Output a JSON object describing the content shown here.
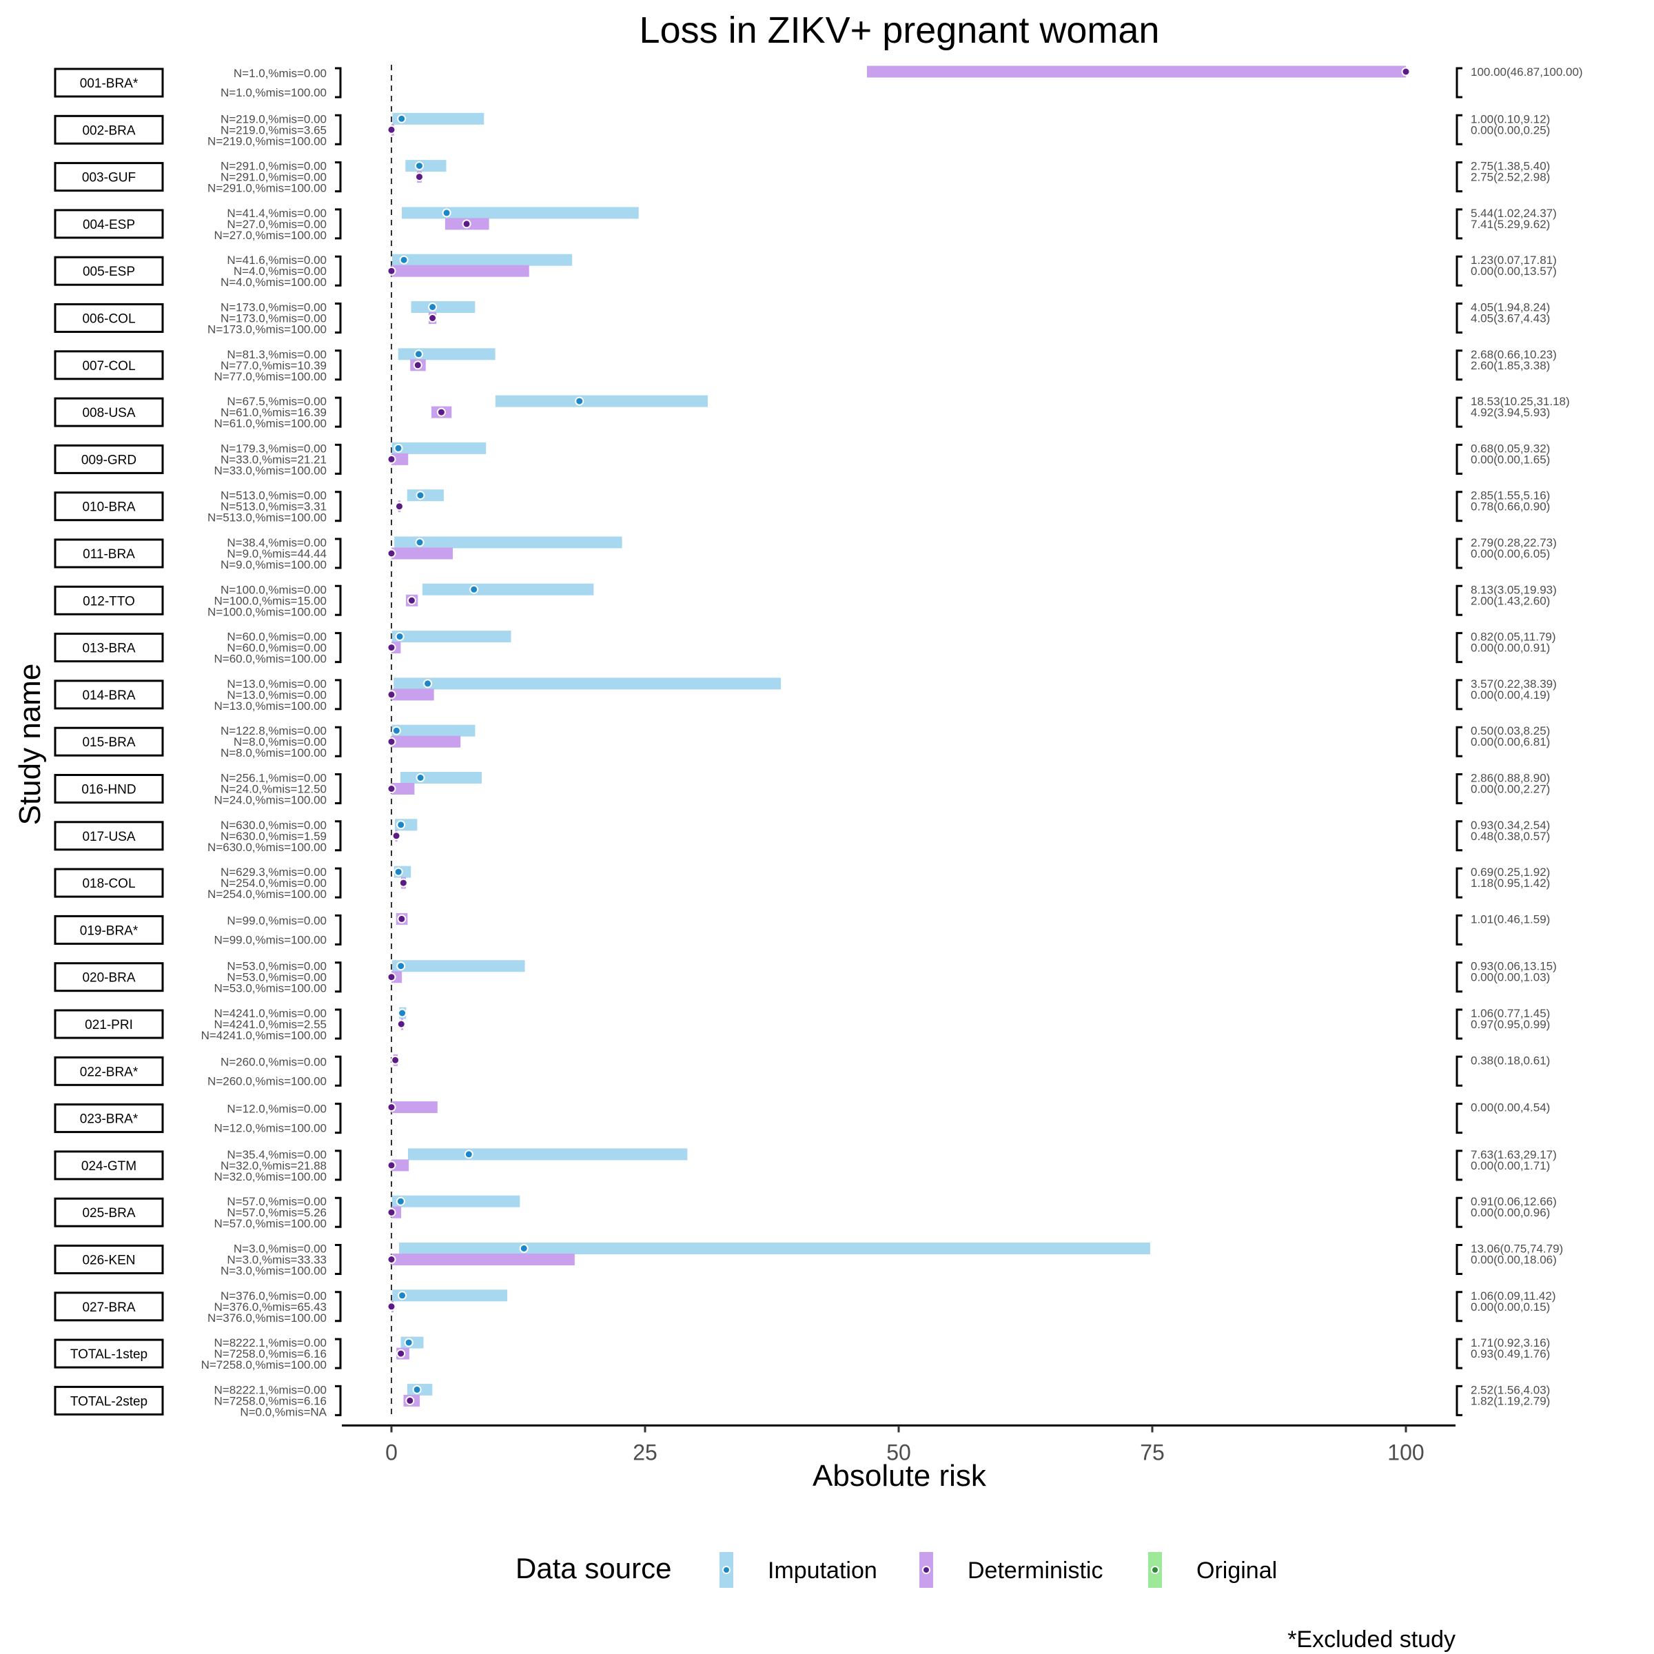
{
  "chart_data": {
    "type": "forest",
    "title": "Loss in ZIKV+ pregnant woman",
    "xlabel": "Absolute risk",
    "ylabel": "Study name",
    "xlim": [
      -5,
      105
    ],
    "x_ticks": [
      0,
      25,
      50,
      75,
      100
    ],
    "grid": false,
    "reference_line_x": 0,
    "legend": {
      "title": "Data source",
      "position": "bottom",
      "entries": [
        {
          "label": "Imputation",
          "bar_color": "#a8d8f0",
          "point_color": "#1b87c8"
        },
        {
          "label": "Deterministic",
          "bar_color": "#c9a0ee",
          "point_color": "#5b1a86"
        },
        {
          "label": "Original",
          "bar_color": "#9ee89a",
          "point_color": "#2e8b3a"
        }
      ]
    },
    "footnote": "*Excluded study",
    "studies": [
      {
        "name": "001-BRA*",
        "n_labels": [
          "N=1.0,%mis=0.00",
          "N=1.0,%mis=100.00"
        ],
        "rows": [
          {
            "source": "Deterministic",
            "est": 100.0,
            "lo": 46.87,
            "hi": 100.0,
            "label": "100.00(46.87,100.00)"
          }
        ]
      },
      {
        "name": "002-BRA",
        "n_labels": [
          "N=219.0,%mis=0.00",
          "N=219.0,%mis=3.65",
          "N=219.0,%mis=100.00"
        ],
        "rows": [
          {
            "source": "Imputation",
            "est": 1.0,
            "lo": 0.1,
            "hi": 9.12,
            "label": "1.00(0.10,9.12)"
          },
          {
            "source": "Deterministic",
            "est": 0.0,
            "lo": 0.0,
            "hi": 0.25,
            "label": "0.00(0.00,0.25)"
          }
        ]
      },
      {
        "name": "003-GUF",
        "n_labels": [
          "N=291.0,%mis=0.00",
          "N=291.0,%mis=0.00",
          "N=291.0,%mis=100.00"
        ],
        "rows": [
          {
            "source": "Imputation",
            "est": 2.75,
            "lo": 1.38,
            "hi": 5.4,
            "label": "2.75(1.38,5.40)"
          },
          {
            "source": "Deterministic",
            "est": 2.75,
            "lo": 2.52,
            "hi": 2.98,
            "label": "2.75(2.52,2.98)"
          }
        ]
      },
      {
        "name": "004-ESP",
        "n_labels": [
          "N=41.4,%mis=0.00",
          "N=27.0,%mis=0.00",
          "N=27.0,%mis=100.00"
        ],
        "rows": [
          {
            "source": "Imputation",
            "est": 5.44,
            "lo": 1.02,
            "hi": 24.37,
            "label": "5.44(1.02,24.37)"
          },
          {
            "source": "Deterministic",
            "est": 7.41,
            "lo": 5.29,
            "hi": 9.62,
            "label": "7.41(5.29,9.62)"
          }
        ]
      },
      {
        "name": "005-ESP",
        "n_labels": [
          "N=41.6,%mis=0.00",
          "N=4.0,%mis=0.00",
          "N=4.0,%mis=100.00"
        ],
        "rows": [
          {
            "source": "Imputation",
            "est": 1.23,
            "lo": 0.07,
            "hi": 17.81,
            "label": "1.23(0.07,17.81)"
          },
          {
            "source": "Deterministic",
            "est": 0.0,
            "lo": 0.0,
            "hi": 13.57,
            "label": "0.00(0.00,13.57)"
          }
        ]
      },
      {
        "name": "006-COL",
        "n_labels": [
          "N=173.0,%mis=0.00",
          "N=173.0,%mis=0.00",
          "N=173.0,%mis=100.00"
        ],
        "rows": [
          {
            "source": "Imputation",
            "est": 4.05,
            "lo": 1.94,
            "hi": 8.24,
            "label": "4.05(1.94,8.24)"
          },
          {
            "source": "Deterministic",
            "est": 4.05,
            "lo": 3.67,
            "hi": 4.43,
            "label": "4.05(3.67,4.43)"
          }
        ]
      },
      {
        "name": "007-COL",
        "n_labels": [
          "N=81.3,%mis=0.00",
          "N=77.0,%mis=10.39",
          "N=77.0,%mis=100.00"
        ],
        "rows": [
          {
            "source": "Imputation",
            "est": 2.68,
            "lo": 0.66,
            "hi": 10.23,
            "label": "2.68(0.66,10.23)"
          },
          {
            "source": "Deterministic",
            "est": 2.6,
            "lo": 1.85,
            "hi": 3.38,
            "label": "2.60(1.85,3.38)"
          }
        ]
      },
      {
        "name": "008-USA",
        "n_labels": [
          "N=67.5,%mis=0.00",
          "N=61.0,%mis=16.39",
          "N=61.0,%mis=100.00"
        ],
        "rows": [
          {
            "source": "Imputation",
            "est": 18.53,
            "lo": 10.25,
            "hi": 31.18,
            "label": "18.53(10.25,31.18)"
          },
          {
            "source": "Deterministic",
            "est": 4.92,
            "lo": 3.94,
            "hi": 5.93,
            "label": "4.92(3.94,5.93)"
          }
        ]
      },
      {
        "name": "009-GRD",
        "n_labels": [
          "N=179.3,%mis=0.00",
          "N=33.0,%mis=21.21",
          "N=33.0,%mis=100.00"
        ],
        "rows": [
          {
            "source": "Imputation",
            "est": 0.68,
            "lo": 0.05,
            "hi": 9.32,
            "label": "0.68(0.05,9.32)"
          },
          {
            "source": "Deterministic",
            "est": 0.0,
            "lo": 0.0,
            "hi": 1.65,
            "label": "0.00(0.00,1.65)"
          }
        ]
      },
      {
        "name": "010-BRA",
        "n_labels": [
          "N=513.0,%mis=0.00",
          "N=513.0,%mis=3.31",
          "N=513.0,%mis=100.00"
        ],
        "rows": [
          {
            "source": "Imputation",
            "est": 2.85,
            "lo": 1.55,
            "hi": 5.16,
            "label": "2.85(1.55,5.16)"
          },
          {
            "source": "Deterministic",
            "est": 0.78,
            "lo": 0.66,
            "hi": 0.9,
            "label": "0.78(0.66,0.90)"
          }
        ]
      },
      {
        "name": "011-BRA",
        "n_labels": [
          "N=38.4,%mis=0.00",
          "N=9.0,%mis=44.44",
          "N=9.0,%mis=100.00"
        ],
        "rows": [
          {
            "source": "Imputation",
            "est": 2.79,
            "lo": 0.28,
            "hi": 22.73,
            "label": "2.79(0.28,22.73)"
          },
          {
            "source": "Deterministic",
            "est": 0.0,
            "lo": 0.0,
            "hi": 6.05,
            "label": "0.00(0.00,6.05)"
          }
        ]
      },
      {
        "name": "012-TTO",
        "n_labels": [
          "N=100.0,%mis=0.00",
          "N=100.0,%mis=15.00",
          "N=100.0,%mis=100.00"
        ],
        "rows": [
          {
            "source": "Imputation",
            "est": 8.13,
            "lo": 3.05,
            "hi": 19.93,
            "label": "8.13(3.05,19.93)"
          },
          {
            "source": "Deterministic",
            "est": 2.0,
            "lo": 1.43,
            "hi": 2.6,
            "label": "2.00(1.43,2.60)"
          }
        ]
      },
      {
        "name": "013-BRA",
        "n_labels": [
          "N=60.0,%mis=0.00",
          "N=60.0,%mis=0.00",
          "N=60.0,%mis=100.00"
        ],
        "rows": [
          {
            "source": "Imputation",
            "est": 0.82,
            "lo": 0.05,
            "hi": 11.79,
            "label": "0.82(0.05,11.79)"
          },
          {
            "source": "Deterministic",
            "est": 0.0,
            "lo": 0.0,
            "hi": 0.91,
            "label": "0.00(0.00,0.91)"
          }
        ]
      },
      {
        "name": "014-BRA",
        "n_labels": [
          "N=13.0,%mis=0.00",
          "N=13.0,%mis=0.00",
          "N=13.0,%mis=100.00"
        ],
        "rows": [
          {
            "source": "Imputation",
            "est": 3.57,
            "lo": 0.22,
            "hi": 38.39,
            "label": "3.57(0.22,38.39)"
          },
          {
            "source": "Deterministic",
            "est": 0.0,
            "lo": 0.0,
            "hi": 4.19,
            "label": "0.00(0.00,4.19)"
          }
        ]
      },
      {
        "name": "015-BRA",
        "n_labels": [
          "N=122.8,%mis=0.00",
          "N=8.0,%mis=0.00",
          "N=8.0,%mis=100.00"
        ],
        "rows": [
          {
            "source": "Imputation",
            "est": 0.5,
            "lo": 0.03,
            "hi": 8.25,
            "label": "0.50(0.03,8.25)"
          },
          {
            "source": "Deterministic",
            "est": 0.0,
            "lo": 0.0,
            "hi": 6.81,
            "label": "0.00(0.00,6.81)"
          }
        ]
      },
      {
        "name": "016-HND",
        "n_labels": [
          "N=256.1,%mis=0.00",
          "N=24.0,%mis=12.50",
          "N=24.0,%mis=100.00"
        ],
        "rows": [
          {
            "source": "Imputation",
            "est": 2.86,
            "lo": 0.88,
            "hi": 8.9,
            "label": "2.86(0.88,8.90)"
          },
          {
            "source": "Deterministic",
            "est": 0.0,
            "lo": 0.0,
            "hi": 2.27,
            "label": "0.00(0.00,2.27)"
          }
        ]
      },
      {
        "name": "017-USA",
        "n_labels": [
          "N=630.0,%mis=0.00",
          "N=630.0,%mis=1.59",
          "N=630.0,%mis=100.00"
        ],
        "rows": [
          {
            "source": "Imputation",
            "est": 0.93,
            "lo": 0.34,
            "hi": 2.54,
            "label": "0.93(0.34,2.54)"
          },
          {
            "source": "Deterministic",
            "est": 0.48,
            "lo": 0.38,
            "hi": 0.57,
            "label": "0.48(0.38,0.57)"
          }
        ]
      },
      {
        "name": "018-COL",
        "n_labels": [
          "N=629.3,%mis=0.00",
          "N=254.0,%mis=0.00",
          "N=254.0,%mis=100.00"
        ],
        "rows": [
          {
            "source": "Imputation",
            "est": 0.69,
            "lo": 0.25,
            "hi": 1.92,
            "label": "0.69(0.25,1.92)"
          },
          {
            "source": "Deterministic",
            "est": 1.18,
            "lo": 0.95,
            "hi": 1.42,
            "label": "1.18(0.95,1.42)"
          }
        ]
      },
      {
        "name": "019-BRA*",
        "n_labels": [
          "N=99.0,%mis=0.00",
          "N=99.0,%mis=100.00"
        ],
        "rows": [
          {
            "source": "Deterministic",
            "est": 1.01,
            "lo": 0.46,
            "hi": 1.59,
            "label": "1.01(0.46,1.59)"
          }
        ]
      },
      {
        "name": "020-BRA",
        "n_labels": [
          "N=53.0,%mis=0.00",
          "N=53.0,%mis=0.00",
          "N=53.0,%mis=100.00"
        ],
        "rows": [
          {
            "source": "Imputation",
            "est": 0.93,
            "lo": 0.06,
            "hi": 13.15,
            "label": "0.93(0.06,13.15)"
          },
          {
            "source": "Deterministic",
            "est": 0.0,
            "lo": 0.0,
            "hi": 1.03,
            "label": "0.00(0.00,1.03)"
          }
        ]
      },
      {
        "name": "021-PRI",
        "n_labels": [
          "N=4241.0,%mis=0.00",
          "N=4241.0,%mis=2.55",
          "N=4241.0,%mis=100.00"
        ],
        "rows": [
          {
            "source": "Imputation",
            "est": 1.06,
            "lo": 0.77,
            "hi": 1.45,
            "label": "1.06(0.77,1.45)"
          },
          {
            "source": "Deterministic",
            "est": 0.97,
            "lo": 0.95,
            "hi": 0.99,
            "label": "0.97(0.95,0.99)"
          }
        ]
      },
      {
        "name": "022-BRA*",
        "n_labels": [
          "N=260.0,%mis=0.00",
          "N=260.0,%mis=100.00"
        ],
        "rows": [
          {
            "source": "Deterministic",
            "est": 0.38,
            "lo": 0.18,
            "hi": 0.61,
            "label": "0.38(0.18,0.61)"
          }
        ]
      },
      {
        "name": "023-BRA*",
        "n_labels": [
          "N=12.0,%mis=0.00",
          "N=12.0,%mis=100.00"
        ],
        "rows": [
          {
            "source": "Deterministic",
            "est": 0.0,
            "lo": 0.0,
            "hi": 4.54,
            "label": "0.00(0.00,4.54)"
          }
        ]
      },
      {
        "name": "024-GTM",
        "n_labels": [
          "N=35.4,%mis=0.00",
          "N=32.0,%mis=21.88",
          "N=32.0,%mis=100.00"
        ],
        "rows": [
          {
            "source": "Imputation",
            "est": 7.63,
            "lo": 1.63,
            "hi": 29.17,
            "label": "7.63(1.63,29.17)"
          },
          {
            "source": "Deterministic",
            "est": 0.0,
            "lo": 0.0,
            "hi": 1.71,
            "label": "0.00(0.00,1.71)"
          }
        ]
      },
      {
        "name": "025-BRA",
        "n_labels": [
          "N=57.0,%mis=0.00",
          "N=57.0,%mis=5.26",
          "N=57.0,%mis=100.00"
        ],
        "rows": [
          {
            "source": "Imputation",
            "est": 0.91,
            "lo": 0.06,
            "hi": 12.66,
            "label": "0.91(0.06,12.66)"
          },
          {
            "source": "Deterministic",
            "est": 0.0,
            "lo": 0.0,
            "hi": 0.96,
            "label": "0.00(0.00,0.96)"
          }
        ]
      },
      {
        "name": "026-KEN",
        "n_labels": [
          "N=3.0,%mis=0.00",
          "N=3.0,%mis=33.33",
          "N=3.0,%mis=100.00"
        ],
        "rows": [
          {
            "source": "Imputation",
            "est": 13.06,
            "lo": 0.75,
            "hi": 74.79,
            "label": "13.06(0.75,74.79)"
          },
          {
            "source": "Deterministic",
            "est": 0.0,
            "lo": 0.0,
            "hi": 18.06,
            "label": "0.00(0.00,18.06)"
          }
        ]
      },
      {
        "name": "027-BRA",
        "n_labels": [
          "N=376.0,%mis=0.00",
          "N=376.0,%mis=65.43",
          "N=376.0,%mis=100.00"
        ],
        "rows": [
          {
            "source": "Imputation",
            "est": 1.06,
            "lo": 0.09,
            "hi": 11.42,
            "label": "1.06(0.09,11.42)"
          },
          {
            "source": "Deterministic",
            "est": 0.0,
            "lo": 0.0,
            "hi": 0.15,
            "label": "0.00(0.00,0.15)"
          }
        ]
      },
      {
        "name": "TOTAL-1step",
        "n_labels": [
          "N=8222.1,%mis=0.00",
          "N=7258.0,%mis=6.16",
          "N=7258.0,%mis=100.00"
        ],
        "rows": [
          {
            "source": "Imputation",
            "est": 1.71,
            "lo": 0.92,
            "hi": 3.16,
            "label": "1.71(0.92,3.16)"
          },
          {
            "source": "Deterministic",
            "est": 0.93,
            "lo": 0.49,
            "hi": 1.76,
            "label": "0.93(0.49,1.76)"
          }
        ]
      },
      {
        "name": "TOTAL-2step",
        "n_labels": [
          "N=8222.1,%mis=0.00",
          "N=7258.0,%mis=6.16",
          "N=0.0,%mis=NA"
        ],
        "rows": [
          {
            "source": "Imputation",
            "est": 2.52,
            "lo": 1.56,
            "hi": 4.03,
            "label": "2.52(1.56,4.03)"
          },
          {
            "source": "Deterministic",
            "est": 1.82,
            "lo": 1.19,
            "hi": 2.79,
            "label": "1.82(1.19,2.79)"
          }
        ]
      }
    ]
  }
}
